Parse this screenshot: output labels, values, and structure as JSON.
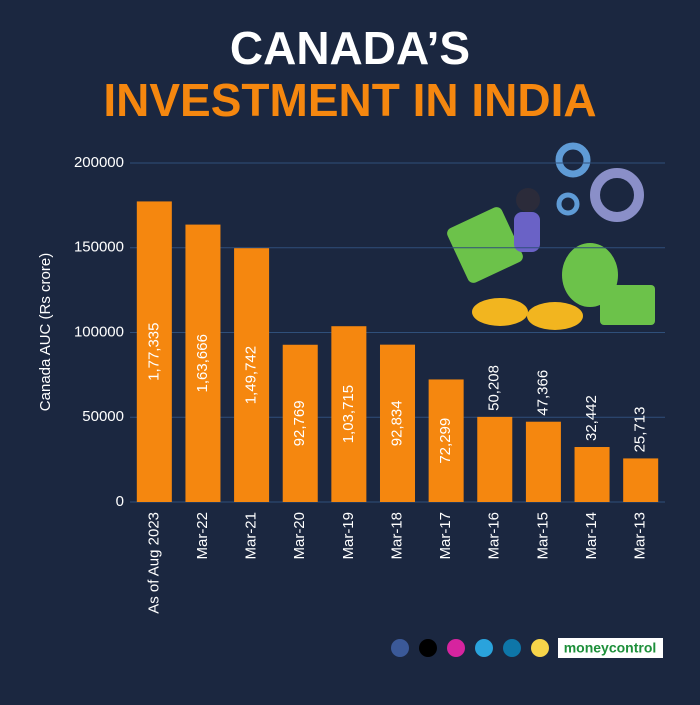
{
  "chart_data": {
    "type": "bar",
    "title": "CANADA’S",
    "subtitle": "INVESTMENT IN INDIA",
    "y_label": "Canada AUC (Rs crore)",
    "categories": [
      "As of Aug 2023",
      "Mar-22",
      "Mar-21",
      "Mar-20",
      "Mar-19",
      "Mar-18",
      "Mar-17",
      "Mar-16",
      "Mar-15",
      "Mar-14",
      "Mar-13"
    ],
    "values": [
      177335,
      163666,
      149742,
      92769,
      103715,
      92834,
      72299,
      50208,
      47366,
      32442,
      25713
    ],
    "value_labels": [
      "1,77,335",
      "1,63,666",
      "1,49,742",
      "92,769",
      "1,03,715",
      "92,834",
      "72,299",
      "50,208",
      "47,366",
      "32,442",
      "25,713"
    ],
    "color": "#f5870f",
    "ylim": [
      0,
      200000
    ],
    "yticks": [
      0,
      50000,
      100000,
      150000,
      200000
    ],
    "grid": true,
    "brand": "moneycontrol"
  }
}
